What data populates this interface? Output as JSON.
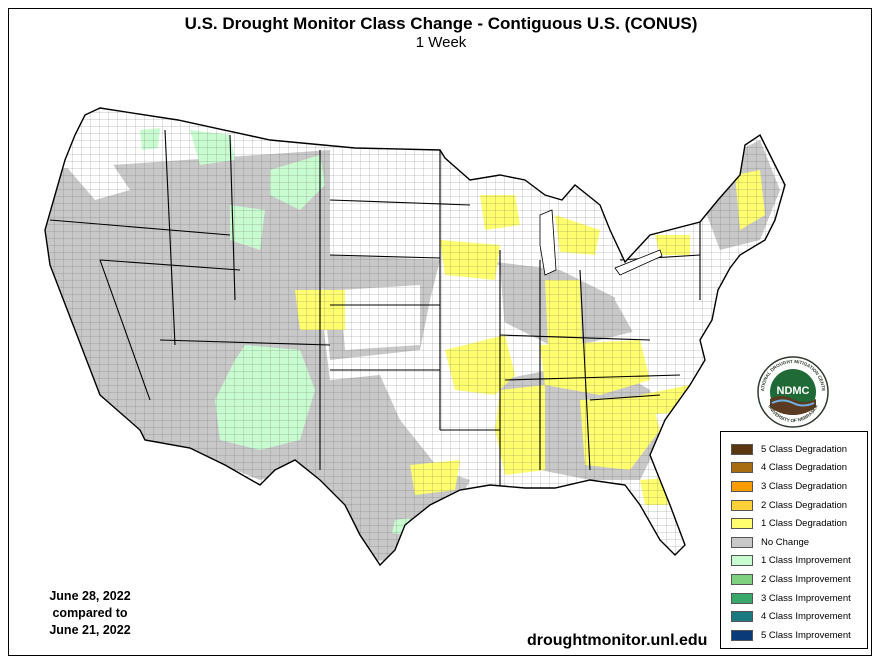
{
  "title": "U.S. Drought Monitor Class Change - Contiguous U.S. (CONUS)",
  "subtitle": "1 Week",
  "dates": {
    "current": "June 28, 2022",
    "compared": "compared to",
    "previous": "June 21, 2022"
  },
  "url": "droughtmonitor.unl.edu",
  "logo": {
    "text": "NDMC",
    "ring_top": "NATIONAL DROUGHT MITIGATION CENTER",
    "ring_bottom": "UNIVERSITY OF NEBRASKA"
  },
  "legend": [
    {
      "label": "5 Class Degradation",
      "color": "#5a3710"
    },
    {
      "label": "4 Class Degradation",
      "color": "#a86d10"
    },
    {
      "label": "3 Class Degradation",
      "color": "#f79d00"
    },
    {
      "label": "2 Class Degradation",
      "color": "#fcd037"
    },
    {
      "label": "1 Class Degradation",
      "color": "#fefe6e"
    },
    {
      "label": "No Change",
      "color": "#c8c8c8"
    },
    {
      "label": "1 Class Improvement",
      "color": "#c8fcd0"
    },
    {
      "label": "2 Class Improvement",
      "color": "#7fd17f"
    },
    {
      "label": "3 Class Improvement",
      "color": "#3aa86b"
    },
    {
      "label": "4 Class Improvement",
      "color": "#1a7a80"
    },
    {
      "label": "5 Class Improvement",
      "color": "#0a3a78"
    }
  ]
}
